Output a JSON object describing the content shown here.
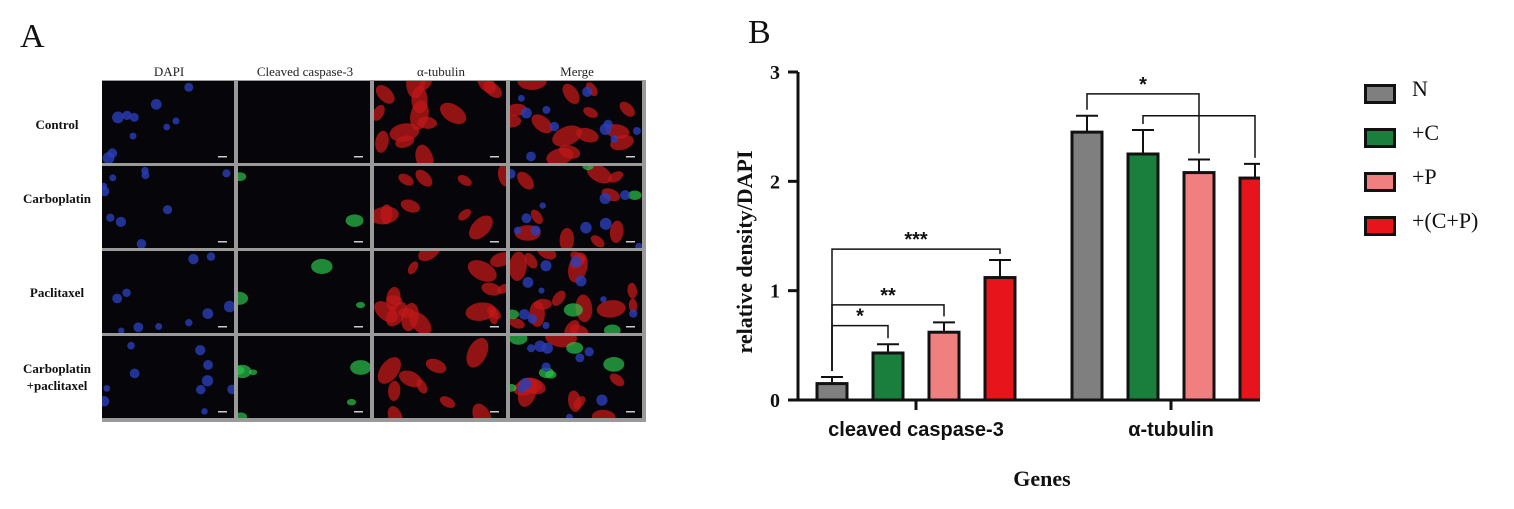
{
  "panel_a": {
    "letter": "A",
    "columns": [
      "DAPI",
      "Cleaved caspase-3",
      "α-tubulin",
      "Merge"
    ],
    "rows": [
      {
        "label_lines": [
          "Control"
        ]
      },
      {
        "label_lines": [
          "Carboplatin"
        ]
      },
      {
        "label_lines": [
          "Paclitaxel"
        ]
      },
      {
        "label_lines": [
          "Carboplatin",
          "+paclitaxel"
        ]
      }
    ]
  },
  "panel_b": {
    "letter": "B"
  },
  "chart_data": {
    "type": "bar",
    "categories": [
      "cleaved caspase-3",
      "α-tubulin"
    ],
    "xlabel": "Genes",
    "ylabel": "relative density/DAPI",
    "ylim": [
      0,
      3
    ],
    "yticks": [
      0,
      1,
      2,
      3
    ],
    "series": [
      {
        "name": "N",
        "color": "#7f7f7f",
        "values": [
          0.15,
          2.45
        ],
        "errors": [
          0.06,
          0.15
        ]
      },
      {
        "name": "+C",
        "color": "#1a7f3c",
        "values": [
          0.43,
          2.25
        ],
        "errors": [
          0.08,
          0.22
        ]
      },
      {
        "name": "+P",
        "color": "#f08080",
        "values": [
          0.62,
          2.08
        ],
        "errors": [
          0.09,
          0.12
        ]
      },
      {
        "name": "+(C+P)",
        "color": "#e8141c",
        "values": [
          1.12,
          2.03
        ],
        "errors": [
          0.16,
          0.13
        ]
      }
    ],
    "significance": [
      {
        "group": 0,
        "from": 0,
        "to": 1,
        "label": "*",
        "level": 0.68
      },
      {
        "group": 0,
        "from": 0,
        "to": 2,
        "label": "**",
        "level": 0.87
      },
      {
        "group": 0,
        "from": 0,
        "to": 3,
        "label": "***",
        "level": 1.38
      },
      {
        "group": 1,
        "from": 0,
        "to": 2,
        "label": "*",
        "level": 2.8
      },
      {
        "group": 1,
        "from": 1,
        "to": 3,
        "label": "",
        "level": 2.6
      }
    ],
    "legend_position": "right"
  }
}
